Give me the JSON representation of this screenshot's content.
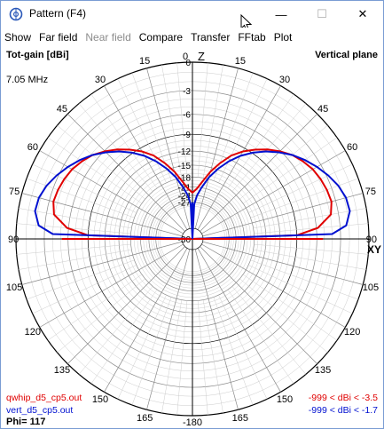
{
  "window": {
    "title": "Pattern   (F4)",
    "minimize_glyph": "—",
    "maximize_glyph": "☐",
    "close_glyph": "✕"
  },
  "menu": [
    {
      "label": "Show",
      "enabled": true
    },
    {
      "label": "Far field",
      "enabled": true
    },
    {
      "label": "Near field",
      "enabled": false
    },
    {
      "label": "Compare",
      "enabled": true
    },
    {
      "label": "Transfer",
      "enabled": true
    },
    {
      "label": "FFtab",
      "enabled": true
    },
    {
      "label": "Plot",
      "enabled": true
    }
  ],
  "plot_header": {
    "top_left": "Tot-gain [dBi]",
    "top_right": "Vertical plane",
    "frequency": "7.05 MHz"
  },
  "chart_data": {
    "type": "polar",
    "radial_ticks": [
      "0",
      "-3",
      "-6",
      "-9",
      "-12",
      "-15",
      "-18",
      "-21",
      "-24",
      "-27",
      "-30"
    ],
    "radial_range_dbi": [
      -30,
      0
    ],
    "angle_ticks_right": [
      "0",
      "15",
      "30",
      "45",
      "60",
      "75",
      "90",
      "105",
      "120",
      "135",
      "150",
      "165"
    ],
    "angle_ticks_left": [
      "15",
      "30",
      "45",
      "60",
      "75",
      "90",
      "105",
      "120",
      "135",
      "150",
      "165"
    ],
    "angle_bottom": "-180",
    "axis_label_top": "Z",
    "axis_label_right": "XY",
    "series": [
      {
        "name": "qwhip_d5_cp5.out",
        "range_text": "-999 < dBi < -3.5",
        "color": "#e00000",
        "angles_deg": [
          0,
          5,
          10,
          15,
          20,
          25,
          30,
          35,
          40,
          45,
          50,
          55,
          60,
          65,
          70,
          75,
          80,
          85,
          88,
          90
        ],
        "values_dbi": [
          -23,
          -21.5,
          -19,
          -16,
          -13.5,
          -11.2,
          -9.6,
          -8.3,
          -7.1,
          -6.1,
          -5.2,
          -4.6,
          -4.1,
          -3.8,
          -3.6,
          -3.5,
          -3.9,
          -5.8,
          -9.0,
          -30
        ]
      },
      {
        "name": "vert_d5_cp5.out",
        "range_text": "-999 < dBi < -1.7",
        "color": "#0010d0",
        "angles_deg": [
          0,
          3,
          6,
          10,
          15,
          20,
          25,
          30,
          35,
          40,
          45,
          50,
          55,
          60,
          65,
          70,
          75,
          80,
          85,
          88,
          90
        ],
        "values_dbi": [
          -30,
          -28,
          -24,
          -21,
          -17.5,
          -14.8,
          -12.5,
          -10.5,
          -8.9,
          -7.5,
          -6.3,
          -5.2,
          -4.3,
          -3.5,
          -2.8,
          -2.2,
          -1.8,
          -1.7,
          -2.3,
          -4.0,
          -30
        ]
      }
    ],
    "phi_label": "Phi= 117"
  }
}
